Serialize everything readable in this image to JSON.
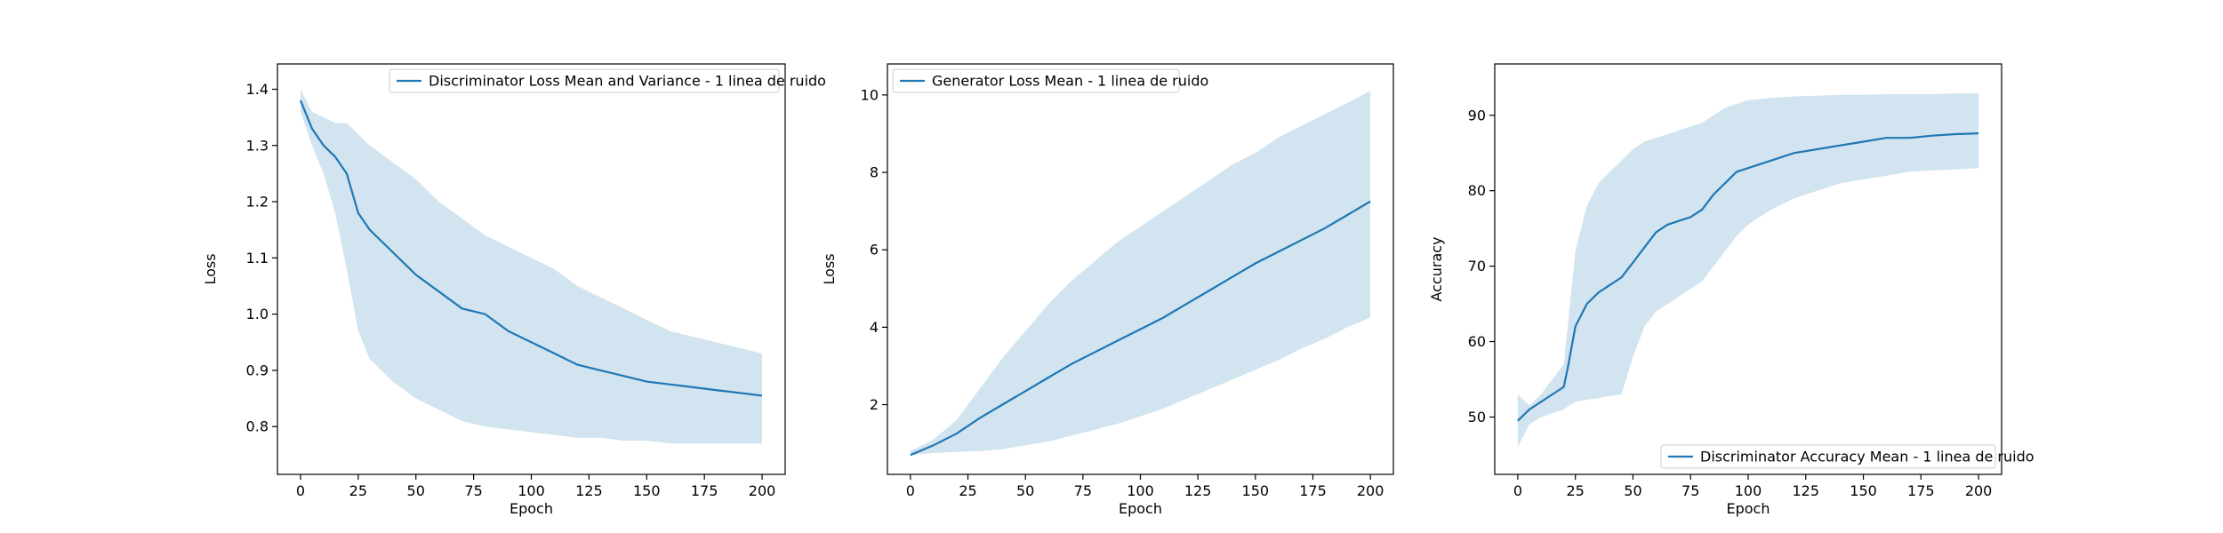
{
  "colors": {
    "line": "#1f77b4",
    "band": "#1f77b4",
    "band_opacity": 0.2,
    "axes": "#000000",
    "background": "#ffffff"
  },
  "chart_data": [
    {
      "type": "line",
      "title": "",
      "xlabel": "Epoch",
      "ylabel": "Loss",
      "xlim": [
        -10,
        210
      ],
      "ylim": [
        0.715,
        1.445
      ],
      "xticks": [
        "0",
        "25",
        "50",
        "75",
        "100",
        "125",
        "150",
        "175",
        "200"
      ],
      "yticks": [
        "0.8",
        "0.9",
        "1.0",
        "1.1",
        "1.2",
        "1.3",
        "1.4"
      ],
      "grid": false,
      "legend_position": "top-right",
      "series": [
        {
          "name": "Discriminator Loss Mean and Variance - 1 linea de ruido",
          "x": [
            0,
            5,
            10,
            15,
            20,
            25,
            30,
            40,
            50,
            60,
            70,
            80,
            90,
            100,
            110,
            120,
            130,
            140,
            150,
            160,
            170,
            180,
            190,
            200
          ],
          "values": [
            1.38,
            1.33,
            1.3,
            1.28,
            1.25,
            1.18,
            1.15,
            1.11,
            1.07,
            1.04,
            1.01,
            1.0,
            0.97,
            0.95,
            0.93,
            0.91,
            0.9,
            0.89,
            0.88,
            0.875,
            0.87,
            0.865,
            0.86,
            0.855
          ],
          "upper": [
            1.4,
            1.36,
            1.35,
            1.34,
            1.34,
            1.32,
            1.3,
            1.27,
            1.24,
            1.2,
            1.17,
            1.14,
            1.12,
            1.1,
            1.08,
            1.05,
            1.03,
            1.01,
            0.99,
            0.97,
            0.96,
            0.95,
            0.94,
            0.93
          ],
          "lower": [
            1.36,
            1.3,
            1.25,
            1.18,
            1.08,
            0.97,
            0.92,
            0.88,
            0.85,
            0.83,
            0.81,
            0.8,
            0.795,
            0.79,
            0.785,
            0.78,
            0.78,
            0.775,
            0.775,
            0.77,
            0.77,
            0.77,
            0.77,
            0.77
          ]
        }
      ]
    },
    {
      "type": "line",
      "title": "",
      "xlabel": "Epoch",
      "ylabel": "Loss",
      "xlim": [
        -10,
        210
      ],
      "ylim": [
        0.2,
        10.8
      ],
      "xticks": [
        "0",
        "25",
        "50",
        "75",
        "100",
        "125",
        "150",
        "175",
        "200"
      ],
      "yticks": [
        "2",
        "4",
        "6",
        "8",
        "10"
      ],
      "grid": false,
      "legend_position": "top-left",
      "series": [
        {
          "name": "Generator Loss Mean - 1 linea de ruido",
          "x": [
            0,
            10,
            20,
            30,
            40,
            50,
            60,
            70,
            80,
            90,
            100,
            110,
            120,
            130,
            140,
            150,
            160,
            170,
            180,
            190,
            200
          ],
          "values": [
            0.7,
            0.95,
            1.25,
            1.65,
            2.0,
            2.35,
            2.7,
            3.05,
            3.35,
            3.65,
            3.95,
            4.25,
            4.6,
            4.95,
            5.3,
            5.65,
            5.95,
            6.25,
            6.55,
            6.9,
            7.25
          ],
          "upper": [
            0.8,
            1.1,
            1.6,
            2.4,
            3.2,
            3.9,
            4.6,
            5.2,
            5.7,
            6.2,
            6.6,
            7.0,
            7.4,
            7.8,
            8.2,
            8.5,
            8.9,
            9.2,
            9.5,
            9.8,
            10.1
          ],
          "lower": [
            0.7,
            0.75,
            0.78,
            0.8,
            0.85,
            0.95,
            1.05,
            1.2,
            1.35,
            1.5,
            1.7,
            1.9,
            2.15,
            2.4,
            2.65,
            2.9,
            3.15,
            3.45,
            3.7,
            4.0,
            4.25
          ]
        }
      ]
    },
    {
      "type": "line",
      "title": "",
      "xlabel": "Epoch",
      "ylabel": "Accuracy",
      "xlim": [
        -10,
        210
      ],
      "ylim": [
        42.4,
        96.8
      ],
      "xticks": [
        "0",
        "25",
        "50",
        "75",
        "100",
        "125",
        "150",
        "175",
        "200"
      ],
      "yticks": [
        "50",
        "60",
        "70",
        "80",
        "90"
      ],
      "grid": false,
      "legend_position": "bottom-right",
      "series": [
        {
          "name": "Discriminator Accuracy Mean - 1 linea de ruido",
          "x": [
            0,
            5,
            10,
            15,
            20,
            22,
            25,
            30,
            35,
            40,
            45,
            50,
            55,
            60,
            65,
            70,
            75,
            80,
            85,
            90,
            95,
            100,
            110,
            120,
            130,
            140,
            150,
            160,
            170,
            180,
            190,
            200
          ],
          "values": [
            49.5,
            51.0,
            52.0,
            53.0,
            54.0,
            57.0,
            62.0,
            65.0,
            66.5,
            67.5,
            68.5,
            70.5,
            72.5,
            74.5,
            75.5,
            76.0,
            76.5,
            77.5,
            79.5,
            81.0,
            82.5,
            83.0,
            84.0,
            85.0,
            85.5,
            86.0,
            86.5,
            87.0,
            87.0,
            87.3,
            87.5,
            87.6
          ],
          "upper": [
            53.0,
            51.5,
            53.0,
            55.0,
            57.0,
            63.0,
            72.0,
            78.0,
            81.0,
            82.5,
            84.0,
            85.5,
            86.5,
            87.0,
            87.5,
            88.0,
            88.5,
            89.0,
            90.0,
            91.0,
            91.5,
            92.0,
            92.3,
            92.5,
            92.6,
            92.7,
            92.7,
            92.8,
            92.8,
            92.8,
            92.9,
            92.9
          ],
          "lower": [
            46.0,
            49.0,
            50.0,
            50.5,
            51.0,
            51.5,
            52.0,
            52.3,
            52.5,
            52.8,
            53.0,
            58.0,
            62.0,
            64.0,
            65.0,
            66.0,
            67.0,
            68.0,
            70.0,
            72.0,
            74.0,
            75.5,
            77.5,
            79.0,
            80.0,
            81.0,
            81.5,
            82.0,
            82.5,
            82.7,
            82.8,
            83.0
          ]
        }
      ]
    }
  ]
}
